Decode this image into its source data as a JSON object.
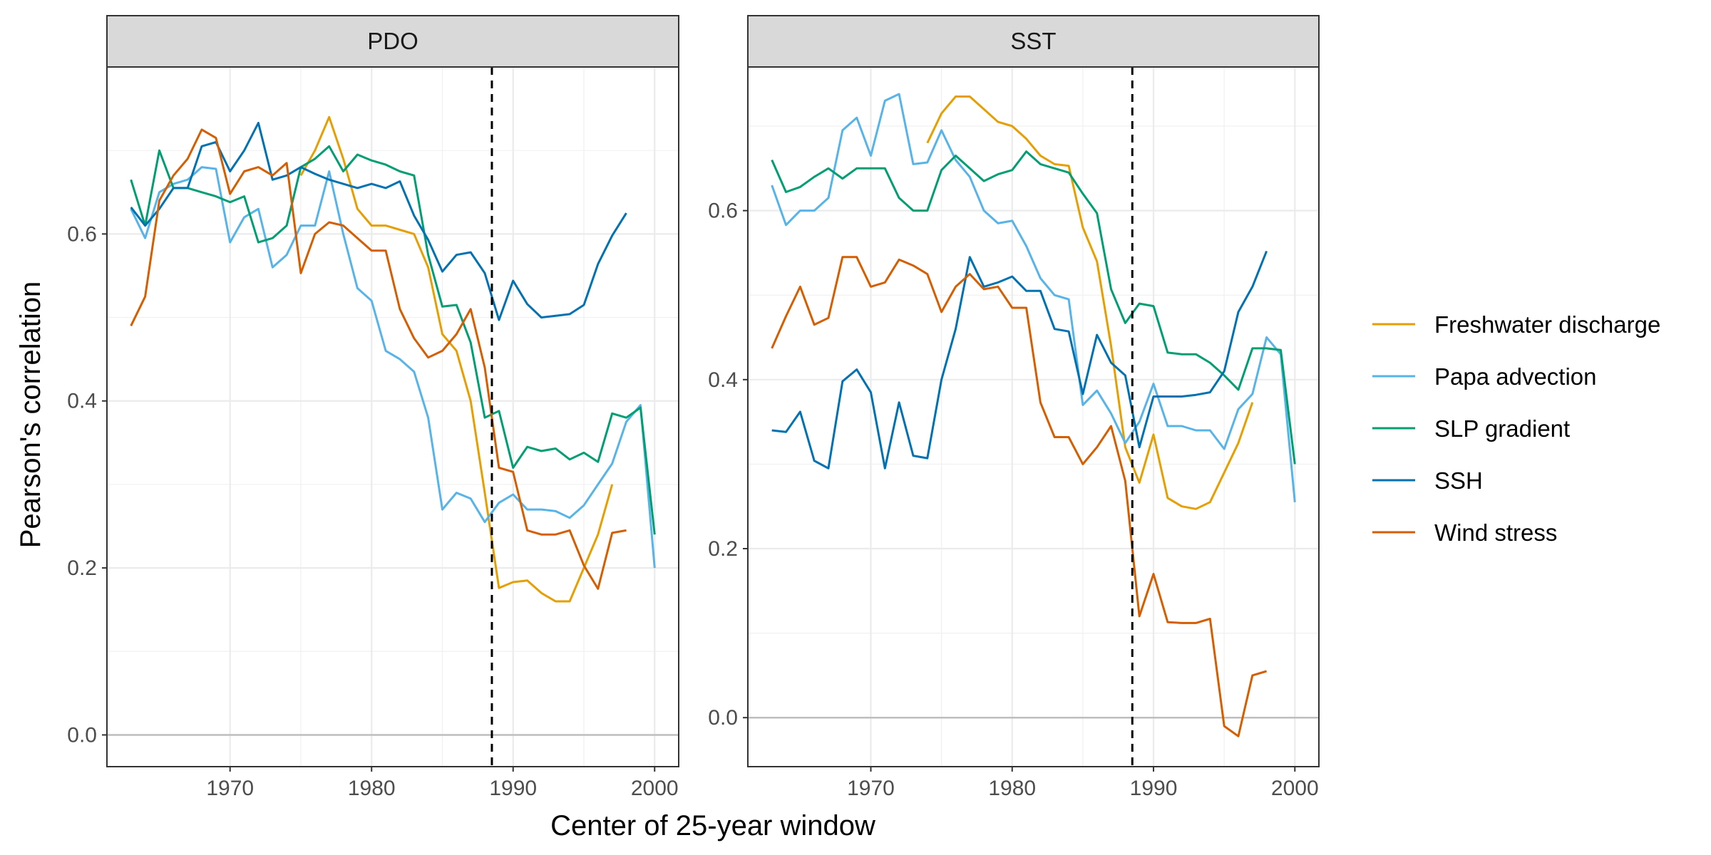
{
  "chart_data": {
    "type": "line",
    "xlabel": "Center of 25-year window",
    "ylabel": "Pearson's correlation",
    "x_ticks": [
      1970,
      1980,
      1990,
      2000
    ],
    "tick_labels_x": [
      "1970",
      "1980",
      "1990",
      "2000"
    ],
    "zero_line": 0,
    "vline_x": 1988.5,
    "grid": true,
    "legend_position": "right",
    "colors": {
      "Freshwater discharge": "#E69F00",
      "Papa advection": "#56B4E9",
      "SLP gradient": "#009E73",
      "SSH": "#0072B2",
      "Wind stress": "#D55E00"
    },
    "panels": [
      {
        "title": "PDO",
        "xlim": [
          1961.3,
          2001.7
        ],
        "ylim": [
          -0.038,
          0.8
        ],
        "y_ticks": [
          0,
          0.2,
          0.4,
          0.6
        ],
        "tick_labels_y": [
          "0.0",
          "0.2",
          "0.4",
          "0.6"
        ],
        "series": [
          {
            "name": "Freshwater discharge",
            "x": [
              1975,
              1976,
              1977,
              1978,
              1979,
              1980,
              1981,
              1982,
              1983,
              1984,
              1985,
              1986,
              1987,
              1988,
              1989,
              1990,
              1991,
              1992,
              1993,
              1994,
              1995,
              1996,
              1997
            ],
            "y": [
              0.67,
              0.7,
              0.74,
              0.69,
              0.63,
              0.61,
              0.61,
              0.605,
              0.6,
              0.56,
              0.48,
              0.46,
              0.4,
              0.29,
              0.176,
              0.183,
              0.185,
              0.17,
              0.16,
              0.16,
              0.2,
              0.24,
              0.3
            ]
          },
          {
            "name": "Papa advection",
            "x": [
              1963,
              1964,
              1965,
              1966,
              1967,
              1968,
              1969,
              1970,
              1971,
              1972,
              1973,
              1974,
              1975,
              1976,
              1977,
              1978,
              1979,
              1980,
              1981,
              1982,
              1983,
              1984,
              1985,
              1986,
              1987,
              1988,
              1989,
              1990,
              1991,
              1992,
              1993,
              1994,
              1995,
              1996,
              1997,
              1998,
              1999,
              2000
            ],
            "y": [
              0.63,
              0.595,
              0.65,
              0.66,
              0.665,
              0.68,
              0.678,
              0.59,
              0.62,
              0.63,
              0.56,
              0.575,
              0.61,
              0.61,
              0.675,
              0.6,
              0.535,
              0.52,
              0.46,
              0.45,
              0.435,
              0.38,
              0.27,
              0.29,
              0.283,
              0.255,
              0.278,
              0.288,
              0.27,
              0.27,
              0.268,
              0.26,
              0.275,
              0.3,
              0.325,
              0.375,
              0.395,
              0.2
            ]
          },
          {
            "name": "SLP gradient",
            "x": [
              1963,
              1964,
              1965,
              1966,
              1967,
              1968,
              1969,
              1970,
              1971,
              1972,
              1973,
              1974,
              1975,
              1976,
              1977,
              1978,
              1979,
              1980,
              1981,
              1982,
              1983,
              1984,
              1985,
              1986,
              1987,
              1988,
              1989,
              1990,
              1991,
              1992,
              1993,
              1994,
              1995,
              1996,
              1997,
              1998,
              1999,
              2000
            ],
            "y": [
              0.665,
              0.61,
              0.7,
              0.655,
              0.655,
              0.65,
              0.645,
              0.638,
              0.645,
              0.59,
              0.595,
              0.61,
              0.68,
              0.69,
              0.705,
              0.675,
              0.695,
              0.688,
              0.683,
              0.675,
              0.67,
              0.575,
              0.513,
              0.515,
              0.47,
              0.38,
              0.388,
              0.32,
              0.345,
              0.34,
              0.343,
              0.33,
              0.338,
              0.327,
              0.385,
              0.38,
              0.392,
              0.24
            ]
          },
          {
            "name": "SSH",
            "x": [
              1963,
              1964,
              1965,
              1966,
              1967,
              1968,
              1969,
              1970,
              1971,
              1972,
              1973,
              1974,
              1975,
              1976,
              1977,
              1978,
              1979,
              1980,
              1981,
              1982,
              1983,
              1984,
              1985,
              1986,
              1987,
              1988,
              1989,
              1990,
              1991,
              1992,
              1993,
              1994,
              1995,
              1996,
              1997,
              1998
            ],
            "y": [
              0.632,
              0.61,
              0.63,
              0.655,
              0.655,
              0.705,
              0.71,
              0.675,
              0.7,
              0.733,
              0.665,
              0.67,
              0.68,
              0.672,
              0.665,
              0.66,
              0.655,
              0.66,
              0.655,
              0.663,
              0.622,
              0.593,
              0.555,
              0.575,
              0.578,
              0.553,
              0.497,
              0.544,
              0.516,
              0.5,
              0.502,
              0.504,
              0.515,
              0.564,
              0.598,
              0.625
            ]
          },
          {
            "name": "Wind stress",
            "x": [
              1963,
              1964,
              1965,
              1966,
              1967,
              1968,
              1969,
              1970,
              1971,
              1972,
              1973,
              1974,
              1975,
              1976,
              1977,
              1978,
              1979,
              1980,
              1981,
              1982,
              1983,
              1984,
              1985,
              1986,
              1987,
              1988,
              1989,
              1990,
              1991,
              1992,
              1993,
              1994,
              1995,
              1996,
              1997,
              1998
            ],
            "y": [
              0.49,
              0.525,
              0.64,
              0.67,
              0.69,
              0.725,
              0.715,
              0.648,
              0.675,
              0.68,
              0.67,
              0.685,
              0.553,
              0.6,
              0.614,
              0.61,
              0.595,
              0.58,
              0.58,
              0.51,
              0.475,
              0.452,
              0.46,
              0.48,
              0.51,
              0.44,
              0.32,
              0.315,
              0.245,
              0.24,
              0.24,
              0.245,
              0.203,
              0.175,
              0.242,
              0.245
            ]
          }
        ]
      },
      {
        "title": "SST",
        "xlim": [
          1961.3,
          2001.7
        ],
        "ylim": [
          -0.058,
          0.77
        ],
        "y_ticks": [
          0,
          0.2,
          0.4,
          0.6
        ],
        "tick_labels_y": [
          "0.0",
          "0.2",
          "0.4",
          "0.6"
        ],
        "series": [
          {
            "name": "Freshwater discharge",
            "x": [
              1974,
              1975,
              1976,
              1977,
              1978,
              1979,
              1980,
              1981,
              1982,
              1983,
              1984,
              1985,
              1986,
              1987,
              1988,
              1989,
              1990,
              1991,
              1992,
              1993,
              1994,
              1995,
              1996,
              1997
            ],
            "y": [
              0.68,
              0.715,
              0.735,
              0.735,
              0.72,
              0.705,
              0.7,
              0.685,
              0.665,
              0.655,
              0.653,
              0.58,
              0.54,
              0.44,
              0.32,
              0.278,
              0.335,
              0.26,
              0.25,
              0.247,
              0.255,
              0.29,
              0.325,
              0.373
            ]
          },
          {
            "name": "Papa advection",
            "x": [
              1963,
              1964,
              1965,
              1966,
              1967,
              1968,
              1969,
              1970,
              1971,
              1972,
              1973,
              1974,
              1975,
              1976,
              1977,
              1978,
              1979,
              1980,
              1981,
              1982,
              1983,
              1984,
              1985,
              1986,
              1987,
              1988,
              1989,
              1990,
              1991,
              1992,
              1993,
              1994,
              1995,
              1996,
              1997,
              1998,
              1999,
              2000
            ],
            "y": [
              0.63,
              0.583,
              0.6,
              0.6,
              0.615,
              0.695,
              0.71,
              0.665,
              0.73,
              0.738,
              0.655,
              0.657,
              0.695,
              0.66,
              0.64,
              0.6,
              0.585,
              0.588,
              0.558,
              0.52,
              0.5,
              0.495,
              0.37,
              0.387,
              0.36,
              0.325,
              0.35,
              0.395,
              0.345,
              0.345,
              0.34,
              0.34,
              0.318,
              0.365,
              0.383,
              0.45,
              0.43,
              0.255
            ]
          },
          {
            "name": "SLP gradient",
            "x": [
              1963,
              1964,
              1965,
              1966,
              1967,
              1968,
              1969,
              1970,
              1971,
              1972,
              1973,
              1974,
              1975,
              1976,
              1977,
              1978,
              1979,
              1980,
              1981,
              1982,
              1983,
              1984,
              1985,
              1986,
              1987,
              1988,
              1989,
              1990,
              1991,
              1992,
              1993,
              1994,
              1995,
              1996,
              1997,
              1998,
              1999,
              2000
            ],
            "y": [
              0.66,
              0.622,
              0.628,
              0.64,
              0.65,
              0.638,
              0.65,
              0.65,
              0.65,
              0.615,
              0.6,
              0.6,
              0.648,
              0.665,
              0.65,
              0.635,
              0.643,
              0.648,
              0.67,
              0.655,
              0.65,
              0.645,
              0.62,
              0.597,
              0.507,
              0.467,
              0.49,
              0.487,
              0.432,
              0.43,
              0.43,
              0.42,
              0.405,
              0.388,
              0.437,
              0.437,
              0.435,
              0.3
            ]
          },
          {
            "name": "SSH",
            "x": [
              1963,
              1964,
              1965,
              1966,
              1967,
              1968,
              1969,
              1970,
              1971,
              1972,
              1973,
              1974,
              1975,
              1976,
              1977,
              1978,
              1979,
              1980,
              1981,
              1982,
              1983,
              1984,
              1985,
              1986,
              1987,
              1988,
              1989,
              1990,
              1991,
              1992,
              1993,
              1994,
              1995,
              1996,
              1997,
              1998
            ],
            "y": [
              0.34,
              0.338,
              0.362,
              0.304,
              0.295,
              0.398,
              0.412,
              0.385,
              0.295,
              0.373,
              0.31,
              0.307,
              0.4,
              0.46,
              0.545,
              0.51,
              0.515,
              0.522,
              0.505,
              0.505,
              0.46,
              0.457,
              0.383,
              0.453,
              0.42,
              0.405,
              0.32,
              0.38,
              0.38,
              0.38,
              0.382,
              0.385,
              0.41,
              0.48,
              0.51,
              0.552
            ]
          },
          {
            "name": "Wind stress",
            "x": [
              1963,
              1964,
              1965,
              1966,
              1967,
              1968,
              1969,
              1970,
              1971,
              1972,
              1973,
              1974,
              1975,
              1976,
              1977,
              1978,
              1979,
              1980,
              1981,
              1982,
              1983,
              1984,
              1985,
              1986,
              1987,
              1988,
              1989,
              1990,
              1991,
              1992,
              1993,
              1994,
              1995,
              1996,
              1997,
              1998
            ],
            "y": [
              0.437,
              0.475,
              0.51,
              0.465,
              0.473,
              0.545,
              0.545,
              0.51,
              0.515,
              0.542,
              0.535,
              0.525,
              0.48,
              0.51,
              0.525,
              0.507,
              0.51,
              0.485,
              0.485,
              0.373,
              0.332,
              0.332,
              0.3,
              0.32,
              0.345,
              0.28,
              0.12,
              0.17,
              0.113,
              0.112,
              0.112,
              0.117,
              -0.01,
              -0.022,
              0.05,
              0.055
            ]
          }
        ]
      }
    ]
  }
}
